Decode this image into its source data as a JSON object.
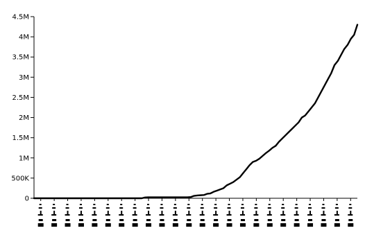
{
  "chart_data": {
    "type": "line",
    "title": "",
    "xlabel": "",
    "ylabel": "",
    "ylim": [
      0,
      4500000
    ],
    "y_ticks": [
      {
        "value": 0,
        "label": "0"
      },
      {
        "value": 500000,
        "label": "500K"
      },
      {
        "value": 1000000,
        "label": "1M"
      },
      {
        "value": 1500000,
        "label": "1.5M"
      },
      {
        "value": 2000000,
        "label": "2M"
      },
      {
        "value": 2500000,
        "label": "2.5M"
      },
      {
        "value": 3000000,
        "label": "3M"
      },
      {
        "value": 3500000,
        "label": "3.5M"
      },
      {
        "value": 4000000,
        "label": "4M"
      },
      {
        "value": 4500000,
        "label": "4.5M"
      }
    ],
    "x_tick_count": 24,
    "x_tick_labels_legible": false,
    "grid": false,
    "legend": "none",
    "line_color": "#000000",
    "series": [
      {
        "values": [
          0,
          0,
          0,
          0,
          0,
          0,
          0,
          0,
          0,
          0,
          0,
          0,
          0,
          0,
          0,
          0,
          0,
          0,
          0,
          0,
          0,
          0,
          0,
          0,
          0,
          0,
          0,
          0,
          0,
          0,
          0,
          0,
          0,
          0,
          20000,
          25000,
          25000,
          25000,
          25000,
          25000,
          25000,
          25000,
          25000,
          25000,
          25000,
          25000,
          25000,
          25000,
          30000,
          60000,
          70000,
          75000,
          80000,
          110000,
          120000,
          160000,
          190000,
          220000,
          250000,
          320000,
          360000,
          400000,
          460000,
          520000,
          620000,
          720000,
          820000,
          900000,
          930000,
          980000,
          1050000,
          1120000,
          1180000,
          1250000,
          1300000,
          1400000,
          1480000,
          1560000,
          1640000,
          1720000,
          1800000,
          1880000,
          2000000,
          2050000,
          2150000,
          2250000,
          2350000,
          2500000,
          2650000,
          2800000,
          2950000,
          3100000,
          3300000,
          3400000,
          3550000,
          3700000,
          3800000,
          3950000,
          4050000,
          4300000
        ]
      }
    ]
  }
}
